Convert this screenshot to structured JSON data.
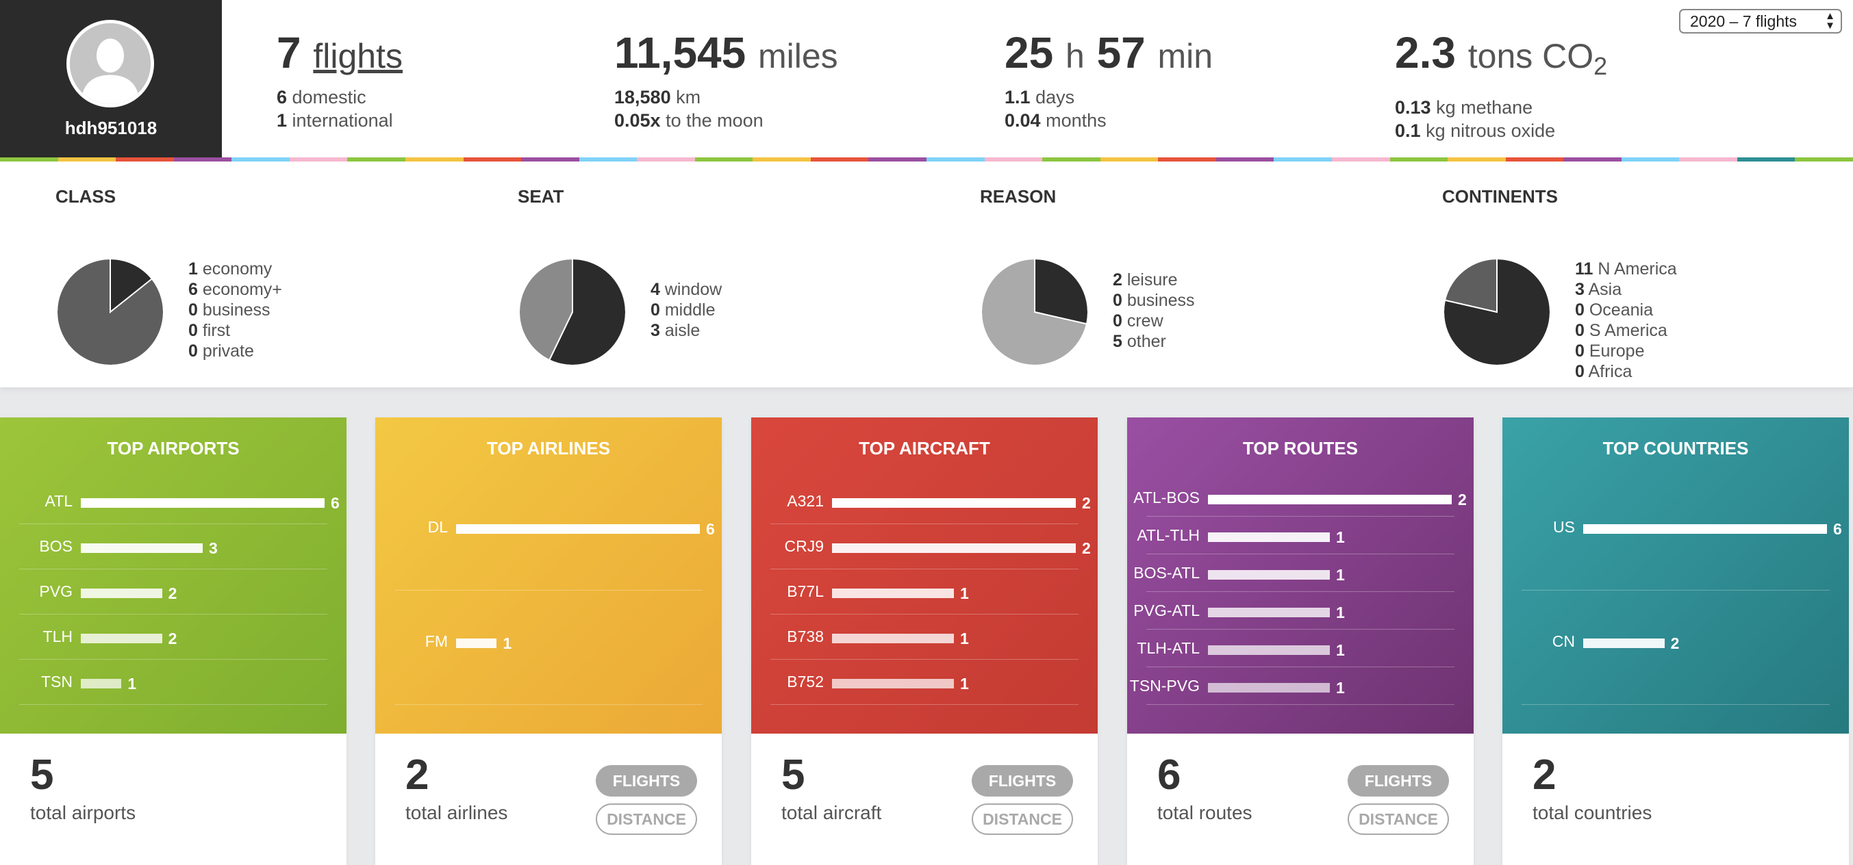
{
  "profile": {
    "username": "hdh951018",
    "avatar_icon": "user-silhouette-icon"
  },
  "stats": {
    "flights": {
      "value": "7",
      "unit": "flights",
      "line1_value": "6",
      "line1_label": "domestic",
      "line2_value": "1",
      "line2_label": "international"
    },
    "distance": {
      "value": "11,545",
      "unit": "miles",
      "line1_value": "18,580",
      "line1_label": "km",
      "line2_value": "0.05x",
      "line2_label": "to the moon"
    },
    "duration": {
      "hours": "25",
      "hours_unit": "h",
      "minutes": "57",
      "minutes_unit": "min",
      "line1_value": "1.1",
      "line1_label": "days",
      "line2_value": "0.04",
      "line2_label": "months"
    },
    "emissions": {
      "value": "2.3",
      "unit": "tons CO",
      "unit_sub": "2",
      "line1_value": "0.13",
      "line1_label": "kg methane",
      "line2_value": "0.1",
      "line2_label": "kg nitrous oxide"
    }
  },
  "year_select": {
    "selected": "2020 – 7 flights"
  },
  "colors": {
    "colorbar": [
      "#8dc63f",
      "#f5c342",
      "#e8533a",
      "#9b4fa0",
      "#7fd3f7",
      "#f7b8cf",
      "#8dc63f",
      "#f5c342",
      "#e8533a",
      "#9b4fa0",
      "#7fd3f7",
      "#f7b8cf",
      "#8dc63f",
      "#f5c342",
      "#e8533a",
      "#9b4fa0",
      "#7fd3f7",
      "#f7b8cf",
      "#8dc63f",
      "#f5c342",
      "#e8533a",
      "#9b4fa0",
      "#7fd3f7",
      "#f7b8cf",
      "#8dc63f",
      "#f5c342",
      "#e8533a",
      "#9b4fa0",
      "#7fd3f7",
      "#f7b8cf",
      "#2c8f94",
      "#8dc63f"
    ]
  },
  "breakdown": {
    "class": {
      "title": "CLASS",
      "items": [
        {
          "value": "1",
          "label": "economy"
        },
        {
          "value": "6",
          "label": "economy+"
        },
        {
          "value": "0",
          "label": "business"
        },
        {
          "value": "0",
          "label": "first"
        },
        {
          "value": "0",
          "label": "private"
        }
      ],
      "slice_colors": [
        "#2b2b2b",
        "#5e5e5e",
        "#888888",
        "#aaaaaa",
        "#cccccc"
      ]
    },
    "seat": {
      "title": "SEAT",
      "items": [
        {
          "value": "4",
          "label": "window"
        },
        {
          "value": "0",
          "label": "middle"
        },
        {
          "value": "3",
          "label": "aisle"
        }
      ],
      "slice_colors": [
        "#2b2b2b",
        "#5e5e5e",
        "#8a8a8a"
      ]
    },
    "reason": {
      "title": "REASON",
      "items": [
        {
          "value": "2",
          "label": "leisure"
        },
        {
          "value": "0",
          "label": "business"
        },
        {
          "value": "0",
          "label": "crew"
        },
        {
          "value": "5",
          "label": "other"
        }
      ],
      "slice_colors": [
        "#2b2b2b",
        "#5e5e5e",
        "#888888",
        "#aaaaaa"
      ]
    },
    "continents": {
      "title": "CONTINENTS",
      "items": [
        {
          "value": "11",
          "label": "N America"
        },
        {
          "value": "3",
          "label": "Asia"
        },
        {
          "value": "0",
          "label": "Oceania"
        },
        {
          "value": "0",
          "label": "S America"
        },
        {
          "value": "0",
          "label": "Europe"
        },
        {
          "value": "0",
          "label": "Africa"
        }
      ],
      "slice_colors": [
        "#2b2b2b",
        "#5e5e5e",
        "#777777",
        "#8a8a8a",
        "#9d9d9d",
        "#b0b0b0"
      ]
    }
  },
  "cards": {
    "airports": {
      "title": "TOP AIRPORTS",
      "items": [
        {
          "label": "ATL",
          "value": 6
        },
        {
          "label": "BOS",
          "value": 3
        },
        {
          "label": "PVG",
          "value": 2
        },
        {
          "label": "TLH",
          "value": 2
        },
        {
          "label": "TSN",
          "value": 1
        }
      ],
      "total": "5",
      "total_label": "total airports"
    },
    "airlines": {
      "title": "TOP AIRLINES",
      "items": [
        {
          "label": "DL",
          "value": 6
        },
        {
          "label": "FM",
          "value": 1
        }
      ],
      "total": "2",
      "total_label": "total airlines",
      "flights_label": "FLIGHTS",
      "distance_label": "DISTANCE"
    },
    "aircraft": {
      "title": "TOP AIRCRAFT",
      "items": [
        {
          "label": "A321",
          "value": 2
        },
        {
          "label": "CRJ9",
          "value": 2
        },
        {
          "label": "B77L",
          "value": 1
        },
        {
          "label": "B738",
          "value": 1
        },
        {
          "label": "B752",
          "value": 1
        }
      ],
      "total": "5",
      "total_label": "total aircraft",
      "flights_label": "FLIGHTS",
      "distance_label": "DISTANCE"
    },
    "routes": {
      "title": "TOP ROUTES",
      "items": [
        {
          "label": "ATL-BOS",
          "value": 2
        },
        {
          "label": "ATL-TLH",
          "value": 1
        },
        {
          "label": "BOS-ATL",
          "value": 1
        },
        {
          "label": "PVG-ATL",
          "value": 1
        },
        {
          "label": "TLH-ATL",
          "value": 1
        },
        {
          "label": "TSN-PVG",
          "value": 1
        }
      ],
      "total": "6",
      "total_label": "total routes",
      "flights_label": "FLIGHTS",
      "distance_label": "DISTANCE"
    },
    "countries": {
      "title": "TOP COUNTRIES",
      "items": [
        {
          "label": "US",
          "value": 6
        },
        {
          "label": "CN",
          "value": 2
        }
      ],
      "total": "2",
      "total_label": "total countries"
    }
  }
}
